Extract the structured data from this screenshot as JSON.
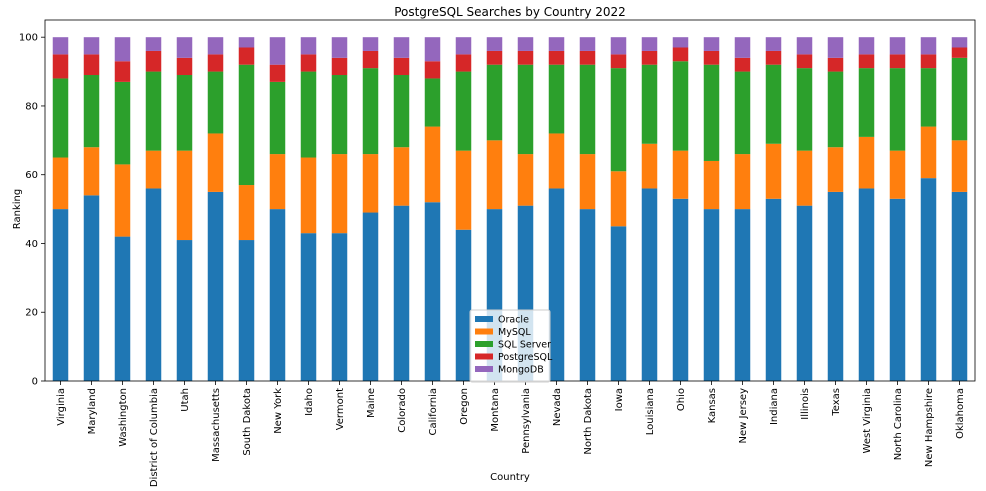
{
  "chart_data": {
    "type": "bar",
    "stacked": true,
    "title": "PostgreSQL Searches by Country 2022",
    "xlabel": "Country",
    "ylabel": "Ranking",
    "ylim": [
      0,
      105
    ],
    "yticks": [
      0,
      20,
      40,
      60,
      80,
      100
    ],
    "legend_position": "bottom-center",
    "categories": [
      "Virginia",
      "Maryland",
      "Washington",
      "District of Columbia",
      "Utah",
      "Massachusetts",
      "South Dakota",
      "New York",
      "Idaho",
      "Vermont",
      "Maine",
      "Colorado",
      "California",
      "Oregon",
      "Montana",
      "Pennsylvania",
      "Nevada",
      "North Dakota",
      "Iowa",
      "Louisiana",
      "Ohio",
      "Kansas",
      "New Jersey",
      "Indiana",
      "Illinois",
      "Texas",
      "West Virginia",
      "North Carolina",
      "New Hampshire",
      "Oklahoma"
    ],
    "series": [
      {
        "name": "Oracle",
        "color": "#1f77b4",
        "values": [
          50,
          54,
          42,
          56,
          41,
          55,
          41,
          50,
          43,
          43,
          49,
          51,
          52,
          44,
          50,
          51,
          56,
          50,
          45,
          56,
          53,
          50,
          50,
          53,
          51,
          55,
          56,
          53,
          59,
          55
        ]
      },
      {
        "name": "MySQL",
        "color": "#ff7f0e",
        "values": [
          15,
          14,
          21,
          11,
          26,
          17,
          16,
          16,
          22,
          23,
          17,
          17,
          22,
          23,
          20,
          15,
          16,
          16,
          16,
          13,
          14,
          14,
          16,
          16,
          16,
          13,
          15,
          14,
          15,
          15
        ]
      },
      {
        "name": "SQL Server",
        "color": "#2ca02c",
        "values": [
          23,
          21,
          24,
          23,
          22,
          18,
          35,
          21,
          25,
          23,
          25,
          21,
          14,
          23,
          22,
          26,
          20,
          26,
          30,
          23,
          26,
          28,
          24,
          23,
          24,
          22,
          20,
          24,
          17,
          24
        ]
      },
      {
        "name": "PostgreSQL",
        "color": "#d62728",
        "values": [
          7,
          6,
          6,
          6,
          5,
          5,
          5,
          5,
          5,
          5,
          5,
          5,
          5,
          5,
          4,
          4,
          4,
          4,
          4,
          4,
          4,
          4,
          4,
          4,
          4,
          4,
          4,
          4,
          4,
          3
        ]
      },
      {
        "name": "MongoDB",
        "color": "#9467bd",
        "values": [
          5,
          5,
          7,
          4,
          6,
          5,
          3,
          8,
          5,
          6,
          4,
          6,
          7,
          5,
          4,
          4,
          4,
          4,
          5,
          4,
          3,
          4,
          6,
          4,
          5,
          6,
          5,
          5,
          5,
          3
        ]
      }
    ]
  }
}
